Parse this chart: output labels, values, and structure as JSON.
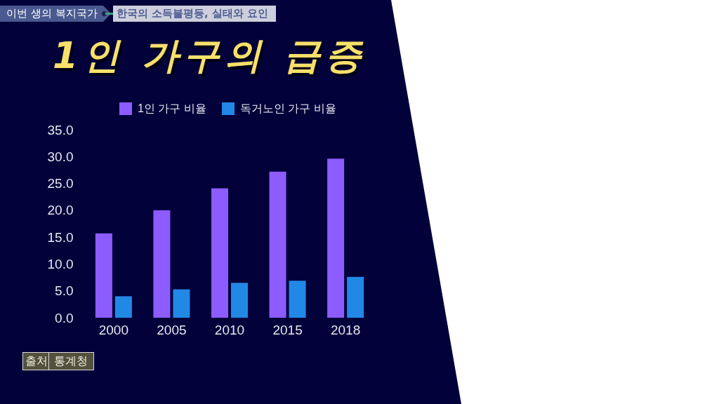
{
  "chart_data": {
    "type": "bar",
    "title": "1인 가구의 급증",
    "subtitle": "한국의 소득불평등, 실태와 요인",
    "annotations": [
      "이번 생의 복지국가",
      "출처",
      "통계청"
    ],
    "categories": [
      "2000",
      "2005",
      "2010",
      "2015",
      "2018"
    ],
    "series": [
      {
        "name": "1인 가구 비율",
        "color": "#8c5cff",
        "values": [
          15.7,
          20.0,
          24.1,
          27.2,
          29.6
        ]
      },
      {
        "name": "독거노인 가구 비율",
        "color": "#2188e6",
        "values": [
          4.0,
          5.3,
          6.5,
          6.9,
          7.6
        ]
      }
    ],
    "ylim": [
      0,
      35
    ],
    "yticks": [
      {
        "value": 0,
        "label": "0.0"
      },
      {
        "value": 5,
        "label": "5.0"
      },
      {
        "value": 10,
        "label": "10.0"
      },
      {
        "value": 15,
        "label": "15.0"
      },
      {
        "value": 20,
        "label": "20.0"
      },
      {
        "value": 25,
        "label": "25.0"
      },
      {
        "value": 30,
        "label": "30.0"
      },
      {
        "value": 35,
        "label": "35.0"
      }
    ],
    "legend": "top"
  }
}
